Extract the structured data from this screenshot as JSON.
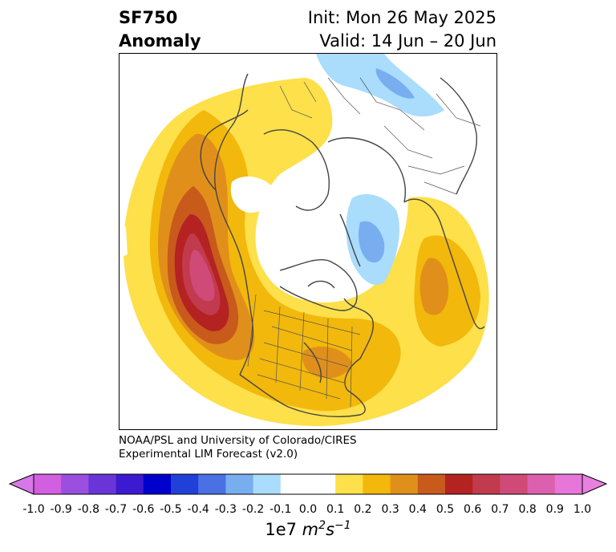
{
  "title": {
    "left_line1": "SF750",
    "left_line2": "Anomaly",
    "right_line1": "Init: Mon 26 May 2025",
    "right_line2": "Valid: 14 Jun – 20 Jun"
  },
  "credit": {
    "line1": "NOAA/PSL and University of Colorado/CIRES",
    "line2": "Experimental LIM Forecast (v2.0)"
  },
  "colorbar": {
    "ticks": [
      "-1.0",
      "-0.9",
      "-0.8",
      "-0.7",
      "-0.6",
      "-0.5",
      "-0.4",
      "-0.3",
      "-0.2",
      "-0.1",
      "0.0",
      "0.1",
      "0.2",
      "0.3",
      "0.4",
      "0.5",
      "0.6",
      "0.7",
      "0.8",
      "0.9",
      "1.0"
    ],
    "colors": [
      "#d25ee0",
      "#9a4fe0",
      "#6a35d8",
      "#3c1ad0",
      "#0000cc",
      "#2040d8",
      "#4a70e4",
      "#78aef0",
      "#aadcfc",
      "#ffffff",
      "#ffffff",
      "#fde04a",
      "#f2b80c",
      "#e0901a",
      "#c85a1c",
      "#b42222",
      "#c23a4e",
      "#d04a78",
      "#dc60ae",
      "#e676d8"
    ],
    "under_color": "#d878e8",
    "over_color": "#e880e0",
    "unit_base": "1e7 ",
    "unit_m": "m",
    "unit_m_exp": "2",
    "unit_s": "s",
    "unit_s_exp": "−1"
  },
  "map": {
    "projection": "polar stereographic, North Pole",
    "colors": {
      "yellow": "#fde04a",
      "gold": "#f2b80c",
      "orange": "#e0901a",
      "dark_orange": "#c85a1c",
      "red": "#b42222",
      "crimson": "#c23a4e",
      "pink": "#d04a78",
      "light_blue": "#aadcfc",
      "blue": "#78aef0",
      "coast": "#444444"
    }
  }
}
